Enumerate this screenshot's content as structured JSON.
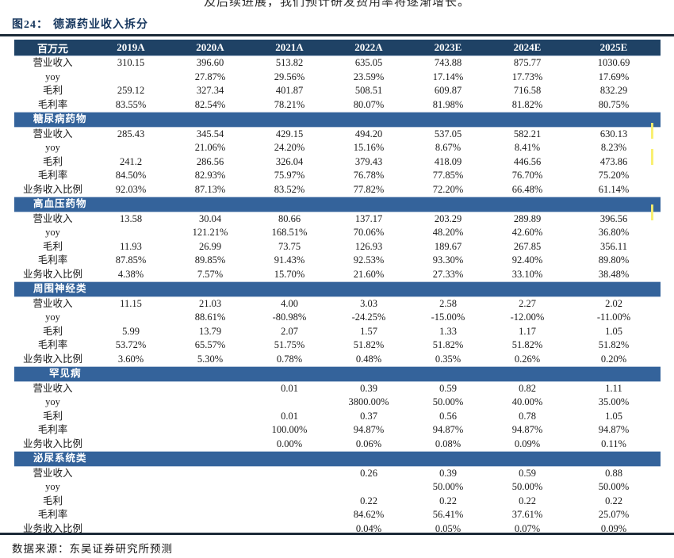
{
  "page": {
    "top_text": "及后续进展，我们预计研发费用率将逐渐增长。",
    "figure_label": "图24：",
    "figure_title": "德源药业收入拆分",
    "source_label": "数据来源：东吴证券研究所预测"
  },
  "colors": {
    "header_bg": "#1f4265",
    "section_bg": "#34639b",
    "title_color": "#17375e",
    "rule_color": "#1c2a38",
    "highlight": "#f9ef6a"
  },
  "table": {
    "unit_header": "百万元",
    "year_headers": [
      "2019A",
      "2020A",
      "2021A",
      "2022A",
      "2023E",
      "2024E",
      "2025E"
    ],
    "sections": [
      {
        "title": "",
        "rows": [
          {
            "label": "营业收入",
            "values": [
              "310.15",
              "396.60",
              "513.82",
              "635.05",
              "743.88",
              "875.77",
              "1030.69"
            ]
          },
          {
            "label": "yoy",
            "values": [
              "",
              "27.87%",
              "29.56%",
              "23.59%",
              "17.14%",
              "17.73%",
              "17.69%"
            ]
          },
          {
            "label": "毛利",
            "values": [
              "259.12",
              "327.34",
              "401.87",
              "508.51",
              "609.87",
              "716.58",
              "832.29"
            ]
          },
          {
            "label": "毛利率",
            "values": [
              "83.55%",
              "82.54%",
              "78.21%",
              "80.07%",
              "81.98%",
              "81.82%",
              "80.75%"
            ]
          }
        ]
      },
      {
        "title": "糖尿病药物",
        "rows": [
          {
            "label": "营业收入",
            "values": [
              "285.43",
              "345.54",
              "429.15",
              "494.20",
              "537.05",
              "582.21",
              "630.13"
            ]
          },
          {
            "label": "yoy",
            "values": [
              "",
              "21.06%",
              "24.20%",
              "15.16%",
              "8.67%",
              "8.41%",
              "8.23%"
            ]
          },
          {
            "label": "毛利",
            "values": [
              "241.2",
              "286.56",
              "326.04",
              "379.43",
              "418.09",
              "446.56",
              "473.86"
            ]
          },
          {
            "label": "毛利率",
            "values": [
              "84.50%",
              "82.93%",
              "75.97%",
              "76.78%",
              "77.85%",
              "76.70%",
              "75.20%"
            ]
          },
          {
            "label": "业务收入比例",
            "values": [
              "92.03%",
              "87.13%",
              "83.52%",
              "77.82%",
              "72.20%",
              "66.48%",
              "61.14%"
            ]
          }
        ]
      },
      {
        "title": "高血压药物",
        "rows": [
          {
            "label": "营业收入",
            "values": [
              "13.58",
              "30.04",
              "80.66",
              "137.17",
              "203.29",
              "289.89",
              "396.56"
            ]
          },
          {
            "label": "yoy",
            "values": [
              "",
              "121.21%",
              "168.51%",
              "70.06%",
              "48.20%",
              "42.60%",
              "36.80%"
            ]
          },
          {
            "label": "毛利",
            "values": [
              "11.93",
              "26.99",
              "73.75",
              "126.93",
              "189.67",
              "267.85",
              "356.11"
            ]
          },
          {
            "label": "毛利率",
            "values": [
              "87.85%",
              "89.85%",
              "91.43%",
              "92.53%",
              "93.30%",
              "92.40%",
              "89.80%"
            ]
          },
          {
            "label": "业务收入比例",
            "values": [
              "4.38%",
              "7.57%",
              "15.70%",
              "21.60%",
              "27.33%",
              "33.10%",
              "38.48%"
            ]
          }
        ]
      },
      {
        "title": "周围神经类",
        "rows": [
          {
            "label": "营业收入",
            "values": [
              "11.15",
              "21.03",
              "4.00",
              "3.03",
              "2.58",
              "2.27",
              "2.02"
            ]
          },
          {
            "label": "yoy",
            "values": [
              "",
              "88.61%",
              "-80.98%",
              "-24.25%",
              "-15.00%",
              "-12.00%",
              "-11.00%"
            ]
          },
          {
            "label": "毛利",
            "values": [
              "5.99",
              "13.79",
              "2.07",
              "1.57",
              "1.33",
              "1.17",
              "1.05"
            ]
          },
          {
            "label": "毛利率",
            "values": [
              "53.72%",
              "65.57%",
              "51.75%",
              "51.82%",
              "51.82%",
              "51.82%",
              "51.82%"
            ]
          },
          {
            "label": "业务收入比例",
            "values": [
              "3.60%",
              "5.30%",
              "0.78%",
              "0.48%",
              "0.35%",
              "0.26%",
              "0.20%"
            ]
          }
        ]
      },
      {
        "title": "罕见病",
        "rows": [
          {
            "label": "营业收入",
            "values": [
              "",
              "",
              "0.01",
              "0.39",
              "0.59",
              "0.82",
              "1.11"
            ]
          },
          {
            "label": "yoy",
            "values": [
              "",
              "",
              "",
              "3800.00%",
              "50.00%",
              "40.00%",
              "35.00%"
            ]
          },
          {
            "label": "毛利",
            "values": [
              "",
              "",
              "0.01",
              "0.37",
              "0.56",
              "0.78",
              "1.05"
            ]
          },
          {
            "label": "毛利率",
            "values": [
              "",
              "",
              "100.00%",
              "94.87%",
              "94.87%",
              "94.87%",
              "94.87%"
            ]
          },
          {
            "label": "业务收入比例",
            "values": [
              "",
              "",
              "0.00%",
              "0.06%",
              "0.08%",
              "0.09%",
              "0.11%"
            ]
          }
        ]
      },
      {
        "title": "泌尿系统类",
        "rows": [
          {
            "label": "营业收入",
            "values": [
              "",
              "",
              "",
              "0.26",
              "0.39",
              "0.59",
              "0.88"
            ]
          },
          {
            "label": "yoy",
            "values": [
              "",
              "",
              "",
              "",
              "50.00%",
              "50.00%",
              "50.00%"
            ]
          },
          {
            "label": "毛利",
            "values": [
              "",
              "",
              "",
              "0.22",
              "0.22",
              "0.22",
              "0.22"
            ]
          },
          {
            "label": "毛利率",
            "values": [
              "",
              "",
              "",
              "84.62%",
              "56.41%",
              "37.61%",
              "25.07%"
            ]
          },
          {
            "label": "业务收入比例",
            "values": [
              "",
              "",
              "",
              "0.04%",
              "0.05%",
              "0.07%",
              "0.09%"
            ]
          }
        ]
      }
    ]
  }
}
